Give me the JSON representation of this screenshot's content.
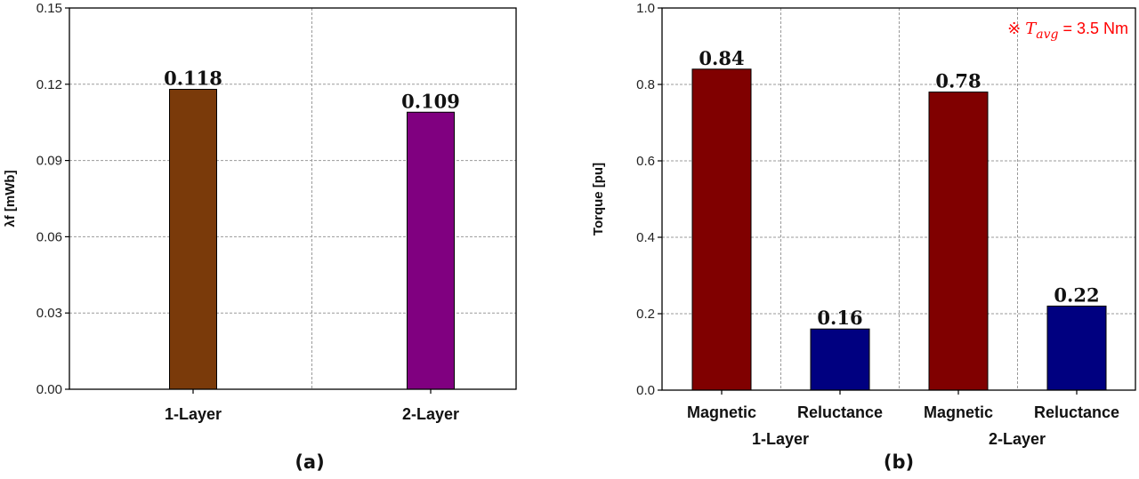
{
  "chart_data": [
    {
      "type": "bar",
      "panel_label": "(a)",
      "categories": [
        "1-Layer",
        "2-Layer"
      ],
      "values": [
        0.118,
        0.109
      ],
      "value_labels": [
        "0.118",
        "0.109"
      ],
      "colors": [
        "#7a3a0a",
        "#800080"
      ],
      "title": "",
      "xlabel": "",
      "ylabel": "λf [mWb]",
      "ylim": [
        0,
        0.15
      ],
      "yticks": [
        "0.00",
        "0.03",
        "0.06",
        "0.09",
        "0.12",
        "0.15"
      ],
      "ytick_values": [
        0,
        0.03,
        0.06,
        0.09,
        0.12,
        0.15
      ],
      "grid": true
    },
    {
      "type": "bar",
      "panel_label": "(b)",
      "categories": [
        "Magnetic",
        "Reluctance",
        "Magnetic",
        "Reluctance"
      ],
      "groups": [
        "1-Layer",
        "2-Layer"
      ],
      "values": [
        0.84,
        0.16,
        0.78,
        0.22
      ],
      "value_labels": [
        "0.84",
        "0.16",
        "0.78",
        "0.22"
      ],
      "colors": [
        "#800000",
        "#000080",
        "#800000",
        "#000080"
      ],
      "title": "",
      "xlabel": "",
      "ylabel": "Torque [pu]",
      "ylim": [
        0,
        1.0
      ],
      "yticks": [
        "0.0",
        "0.2",
        "0.4",
        "0.6",
        "0.8",
        "1.0"
      ],
      "ytick_values": [
        0,
        0.2,
        0.4,
        0.6,
        0.8,
        1.0
      ],
      "grid": true,
      "annotation": {
        "symbol": "※",
        "var": "T",
        "sub": "avg",
        "text": " = 3.5 Nm",
        "color": "#ff0000"
      }
    }
  ]
}
